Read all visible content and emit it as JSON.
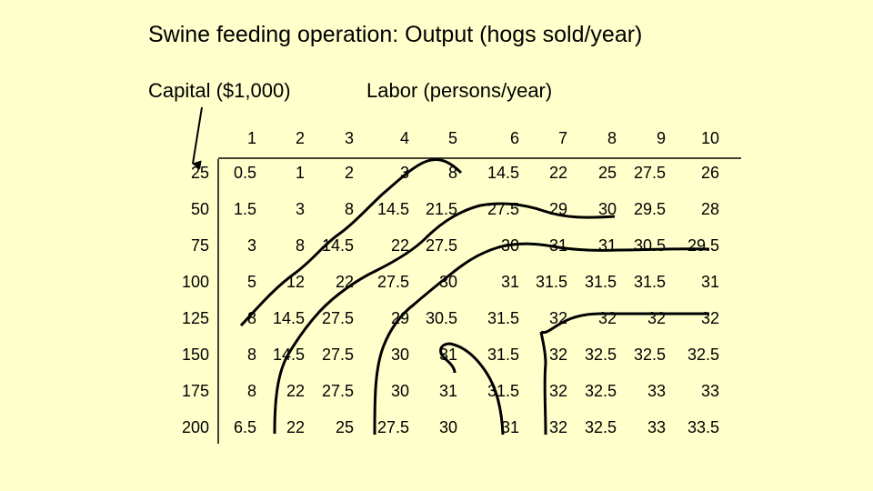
{
  "title": "Swine feeding operation: Output (hogs sold/year)",
  "capital_label": "Capital ($1,000)",
  "labor_label": "Labor (persons/year)",
  "labor_values": [
    "1",
    "2",
    "3",
    "4",
    "5",
    "6",
    "7",
    "8",
    "9",
    "10"
  ],
  "rows": [
    {
      "capital": "25",
      "values": [
        "0.5",
        "1",
        "2",
        "3",
        "8",
        "14.5",
        "22",
        "25",
        "27.5",
        "26"
      ]
    },
    {
      "capital": "50",
      "values": [
        "1.5",
        "3",
        "8",
        "14.5",
        "21.5",
        "27.5",
        "29",
        "30",
        "29.5",
        "28"
      ]
    },
    {
      "capital": "75",
      "values": [
        "3",
        "8",
        "14.5",
        "22",
        "27.5",
        "30",
        "31",
        "31",
        "30.5",
        "29.5"
      ]
    },
    {
      "capital": "100",
      "values": [
        "5",
        "12",
        "22",
        "27.5",
        "30",
        "31",
        "31.5",
        "31.5",
        "31.5",
        "31"
      ]
    },
    {
      "capital": "125",
      "values": [
        "8",
        "14.5",
        "27.5",
        "29",
        "30.5",
        "31.5",
        "32",
        "32",
        "32",
        "32"
      ]
    },
    {
      "capital": "150",
      "values": [
        "8",
        "14.5",
        "27.5",
        "30",
        "31",
        "31.5",
        "32",
        "32.5",
        "32.5",
        "32.5"
      ]
    },
    {
      "capital": "175",
      "values": [
        "8",
        "22",
        "27.5",
        "30",
        "31",
        "31.5",
        "32",
        "32.5",
        "33",
        "33"
      ]
    },
    {
      "capital": "200",
      "values": [
        "6.5",
        "22",
        "25",
        "27.5",
        "30",
        "31",
        "32",
        "32.5",
        "33",
        "33.5"
      ]
    }
  ]
}
